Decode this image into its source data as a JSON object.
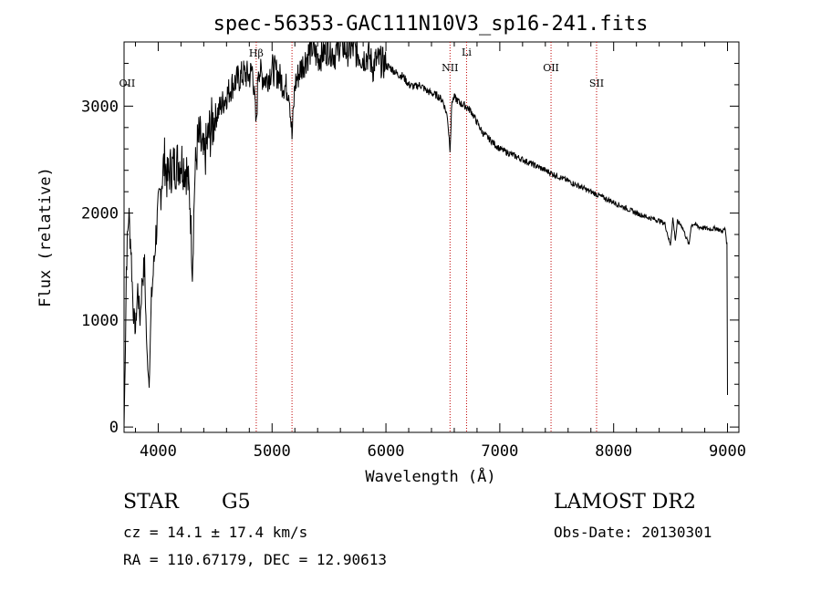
{
  "chart_data": {
    "type": "line",
    "title": "spec-56353-GAC111N10V3_sp16-241.fits",
    "xlabel": "Wavelength (Å)",
    "ylabel": "Flux (relative)",
    "xlim": [
      3700,
      9100
    ],
    "ylim": [
      -50,
      3600
    ],
    "xticks": [
      4000,
      5000,
      6000,
      7000,
      8000,
      9000
    ],
    "yticks": [
      0,
      1000,
      2000,
      3000
    ],
    "grid": false,
    "series": [
      {
        "name": "spectrum",
        "x": [
          3700,
          3710,
          3720,
          3740,
          3760,
          3780,
          3800,
          3820,
          3840,
          3860,
          3880,
          3900,
          3920,
          3940,
          3960,
          3980,
          4000,
          4020,
          4040,
          4060,
          4080,
          4100,
          4150,
          4200,
          4250,
          4280,
          4300,
          4320,
          4340,
          4360,
          4400,
          4450,
          4500,
          4550,
          4600,
          4650,
          4700,
          4750,
          4800,
          4830,
          4861,
          4880,
          4900,
          4950,
          5000,
          5050,
          5100,
          5150,
          5175,
          5200,
          5250,
          5300,
          5350,
          5400,
          5450,
          5500,
          5550,
          5600,
          5650,
          5700,
          5750,
          5800,
          5850,
          5890,
          5900,
          5950,
          6000,
          6050,
          6100,
          6150,
          6200,
          6250,
          6300,
          6350,
          6400,
          6450,
          6500,
          6540,
          6563,
          6580,
          6600,
          6650,
          6700,
          6750,
          6800,
          6850,
          6900,
          6950,
          7000,
          7100,
          7200,
          7300,
          7400,
          7500,
          7600,
          7700,
          7800,
          7900,
          8000,
          8100,
          8200,
          8300,
          8400,
          8450,
          8498,
          8520,
          8542,
          8560,
          8600,
          8662,
          8680,
          8700,
          8750,
          8800,
          8850,
          8900,
          8950,
          8980,
          8995,
          9000
        ],
        "values": [
          0,
          600,
          1500,
          2000,
          1700,
          1100,
          900,
          1300,
          1000,
          1400,
          1500,
          700,
          400,
          1200,
          1500,
          1800,
          2000,
          2200,
          2400,
          2500,
          2300,
          2400,
          2450,
          2500,
          2400,
          2100,
          1450,
          2300,
          2600,
          2700,
          2500,
          2750,
          2900,
          3000,
          3100,
          3200,
          3250,
          3300,
          3280,
          3350,
          2800,
          3400,
          3300,
          3250,
          3350,
          3300,
          3200,
          3150,
          2700,
          3200,
          3350,
          3450,
          3550,
          3450,
          3500,
          3550,
          3480,
          3600,
          3520,
          3540,
          3500,
          3450,
          3480,
          3350,
          3420,
          3420,
          3380,
          3350,
          3300,
          3280,
          3200,
          3180,
          3200,
          3150,
          3120,
          3100,
          3050,
          2900,
          2600,
          3050,
          3080,
          3030,
          3000,
          2950,
          2850,
          2750,
          2700,
          2650,
          2600,
          2550,
          2500,
          2450,
          2400,
          2350,
          2300,
          2250,
          2200,
          2150,
          2100,
          2050,
          2000,
          1960,
          1930,
          1900,
          1700,
          1950,
          1750,
          1920,
          1880,
          1700,
          1880,
          1900,
          1870,
          1860,
          1850,
          1860,
          1830,
          1850,
          1700,
          300
        ]
      }
    ],
    "lines": [
      {
        "x": 4861,
        "label": "Hβ"
      },
      {
        "x": 5175,
        "label": ""
      },
      {
        "x": 6563,
        "label": "NII"
      },
      {
        "x": 6708,
        "label": "Li"
      },
      {
        "x": 7450,
        "label": "OII"
      },
      {
        "x": 7850,
        "label": "SII"
      }
    ],
    "outside_labels": [
      {
        "x": 3727,
        "label": "OII"
      }
    ],
    "colors": {
      "spectrum": "#000000",
      "line_marker": "#c00000",
      "axes": "#000000"
    }
  },
  "info": {
    "object_class": "STAR",
    "subclass": "G5",
    "survey": "LAMOST DR2",
    "cz": "cz = 14.1 ± 17.4 km/s",
    "obs_date": "Obs-Date: 20130301",
    "coords": "RA = 110.67179, DEC =  12.90613"
  }
}
